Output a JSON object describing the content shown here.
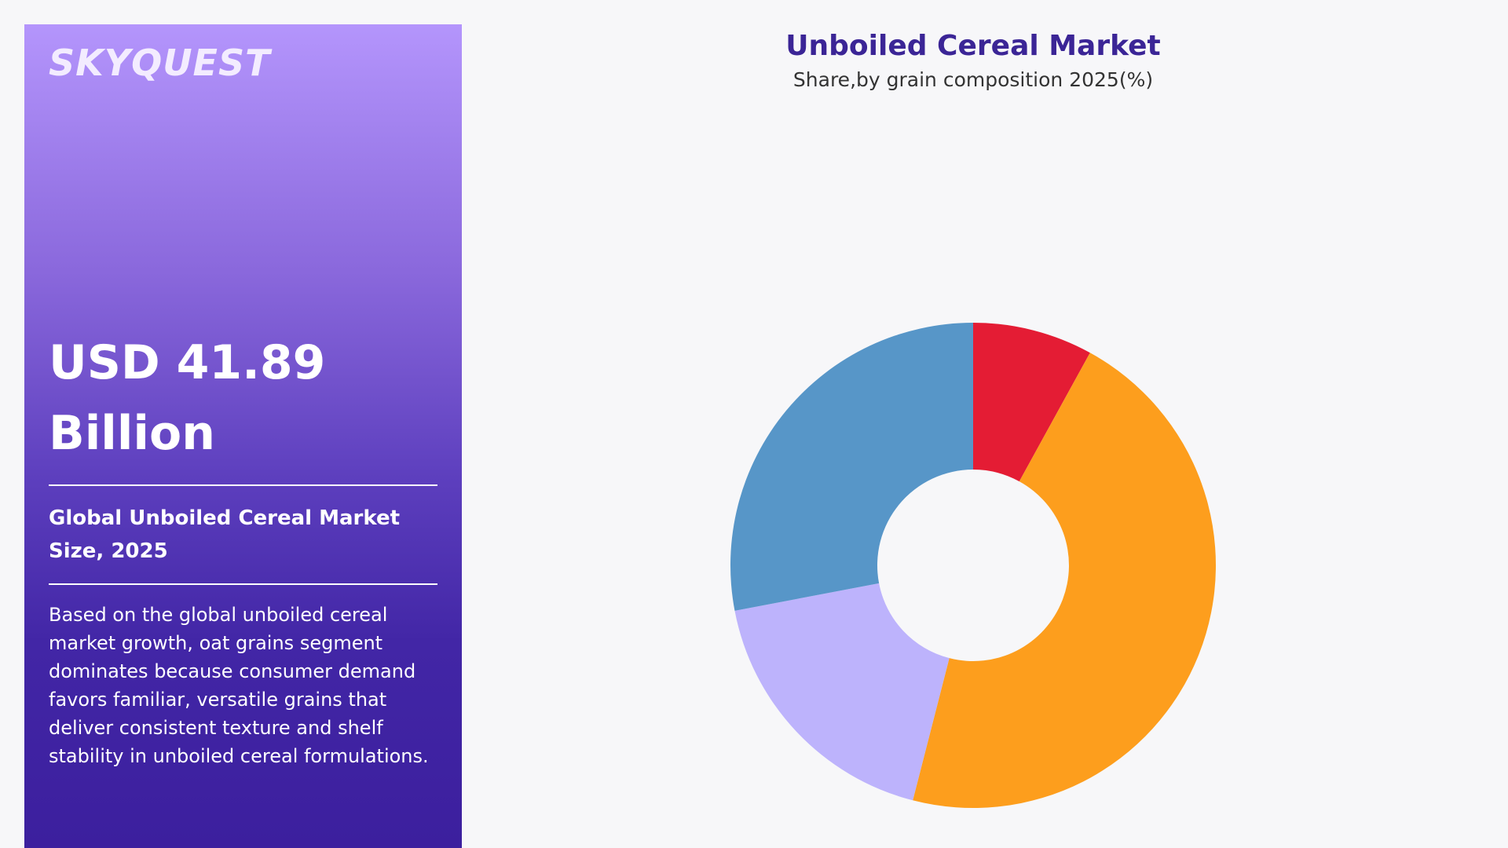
{
  "panel": {
    "logo": "SKYQUEST",
    "value": "USD 41.89 Billion",
    "label": "Global Unboiled Cereal Market Size, 2025",
    "description": "Based on the global unboiled cereal market growth, oat grains segment dominates because consumer demand favors familiar, versatile grains that deliver consistent texture and shelf stability in unboiled cereal formulations."
  },
  "chart_data": {
    "type": "donut",
    "title": "Unboiled Cereal Market",
    "subtitle": "Share,by grain composition 2025(%)",
    "values": [
      8,
      46,
      18,
      28
    ],
    "colors": [
      "#e41c34",
      "#fd9e1d",
      "#bdb3fc",
      "#5796c8"
    ]
  }
}
